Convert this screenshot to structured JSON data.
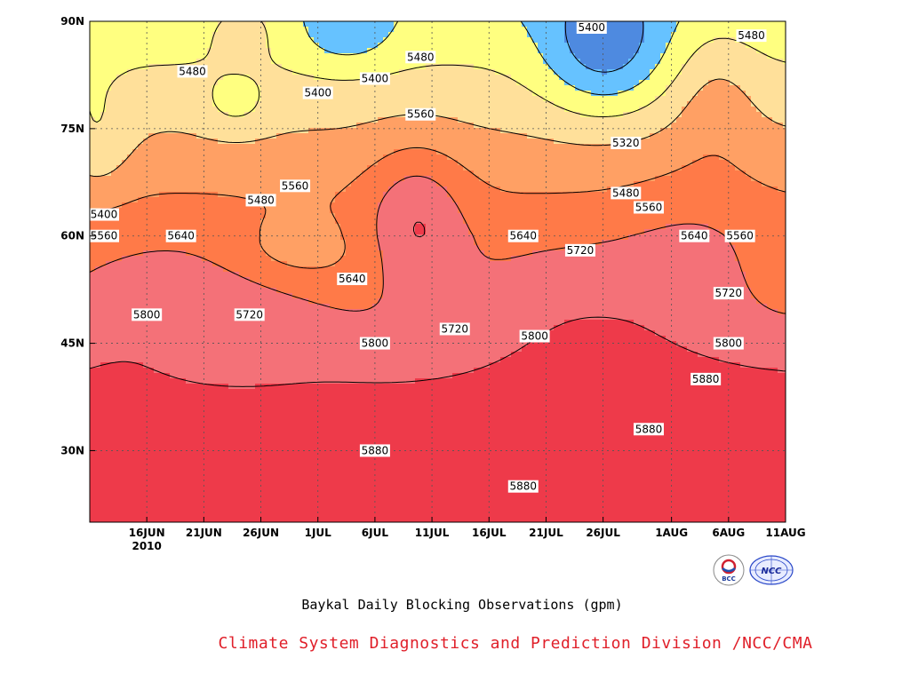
{
  "chart_data": {
    "type": "contour",
    "title": "",
    "xlabel": "",
    "ylabel": "",
    "x_ticks": [
      "16JUN",
      "21JUN",
      "26JUN",
      "1JUL",
      "6JUL",
      "11JUL",
      "16JUL",
      "21JUL",
      "26JUL",
      "1AUG",
      "6AUG",
      "11AUG"
    ],
    "x_year_label": "2010",
    "y_ticks": [
      "90N",
      "75N",
      "60N",
      "45N",
      "30N"
    ],
    "xlim": [
      "2010-06-11",
      "2010-08-11"
    ],
    "ylim": [
      20,
      90
    ],
    "grid": true,
    "contour_levels": [
      5320,
      5400,
      5480,
      5560,
      5640,
      5720,
      5800,
      5880
    ],
    "fill_colors": {
      "below_5320": "#4a50e8",
      "5320_5400": "#4e8ae0",
      "5400_5480": "#66c2ff",
      "5480_5560": "#ffff80",
      "5560_5640": "#ffe09a",
      "5640_5720": "#ffa064",
      "5720_5800": "#ff7a48",
      "5800_5880": "#f47178",
      "above_5880": "#ee3a4a"
    },
    "contour_labels": [
      {
        "text": "5400",
        "date": "2010-06-11",
        "lat": 63
      },
      {
        "text": "5480",
        "date": "2010-06-20",
        "lat": 83
      },
      {
        "text": "5400",
        "date": "2010-07-06",
        "lat": 82
      },
      {
        "text": "5480",
        "date": "2010-07-10",
        "lat": 85
      },
      {
        "text": "5400",
        "date": "2010-07-01",
        "lat": 80
      },
      {
        "text": "5400",
        "date": "2010-07-25",
        "lat": 90
      },
      {
        "text": "5480",
        "date": "2010-08-08",
        "lat": 88
      },
      {
        "text": "5320",
        "date": "2010-07-28",
        "lat": 73
      },
      {
        "text": "5560",
        "date": "2010-07-10",
        "lat": 77
      },
      {
        "text": "5480",
        "date": "2010-06-26",
        "lat": 65
      },
      {
        "text": "5560",
        "date": "2010-06-29",
        "lat": 67
      },
      {
        "text": "5480",
        "date": "2010-07-28",
        "lat": 66
      },
      {
        "text": "5560",
        "date": "2010-07-30",
        "lat": 64
      },
      {
        "text": "5560",
        "date": "2010-06-11",
        "lat": 60
      },
      {
        "text": "5640",
        "date": "2010-06-19",
        "lat": 60
      },
      {
        "text": "5640",
        "date": "2010-07-04",
        "lat": 54
      },
      {
        "text": "5640",
        "date": "2010-07-19",
        "lat": 60
      },
      {
        "text": "5720",
        "date": "2010-07-24",
        "lat": 58
      },
      {
        "text": "5640",
        "date": "2010-08-03",
        "lat": 60
      },
      {
        "text": "5560",
        "date": "2010-08-07",
        "lat": 60
      },
      {
        "text": "5720",
        "date": "2010-08-06",
        "lat": 52
      },
      {
        "text": "5800",
        "date": "2010-06-16",
        "lat": 49
      },
      {
        "text": "5720",
        "date": "2010-06-25",
        "lat": 49
      },
      {
        "text": "5720",
        "date": "2010-07-13",
        "lat": 47
      },
      {
        "text": "5800",
        "date": "2010-07-06",
        "lat": 45
      },
      {
        "text": "5800",
        "date": "2010-07-20",
        "lat": 46
      },
      {
        "text": "5800",
        "date": "2010-08-06",
        "lat": 45
      },
      {
        "text": "5880",
        "date": "2010-08-04",
        "lat": 40
      },
      {
        "text": "5880",
        "date": "2010-07-30",
        "lat": 33
      },
      {
        "text": "5880",
        "date": "2010-07-06",
        "lat": 30
      },
      {
        "text": "5880",
        "date": "2010-07-19",
        "lat": 25
      }
    ]
  },
  "captions": {
    "main": "Baykal Daily Blocking Observations (gpm)",
    "credit": "Climate System Diagnostics and Prediction Division /NCC/CMA"
  },
  "logos": {
    "left": {
      "name": "bcc-logo",
      "text": "BCC"
    },
    "right": {
      "name": "ncc-logo",
      "text": "NCC"
    }
  }
}
